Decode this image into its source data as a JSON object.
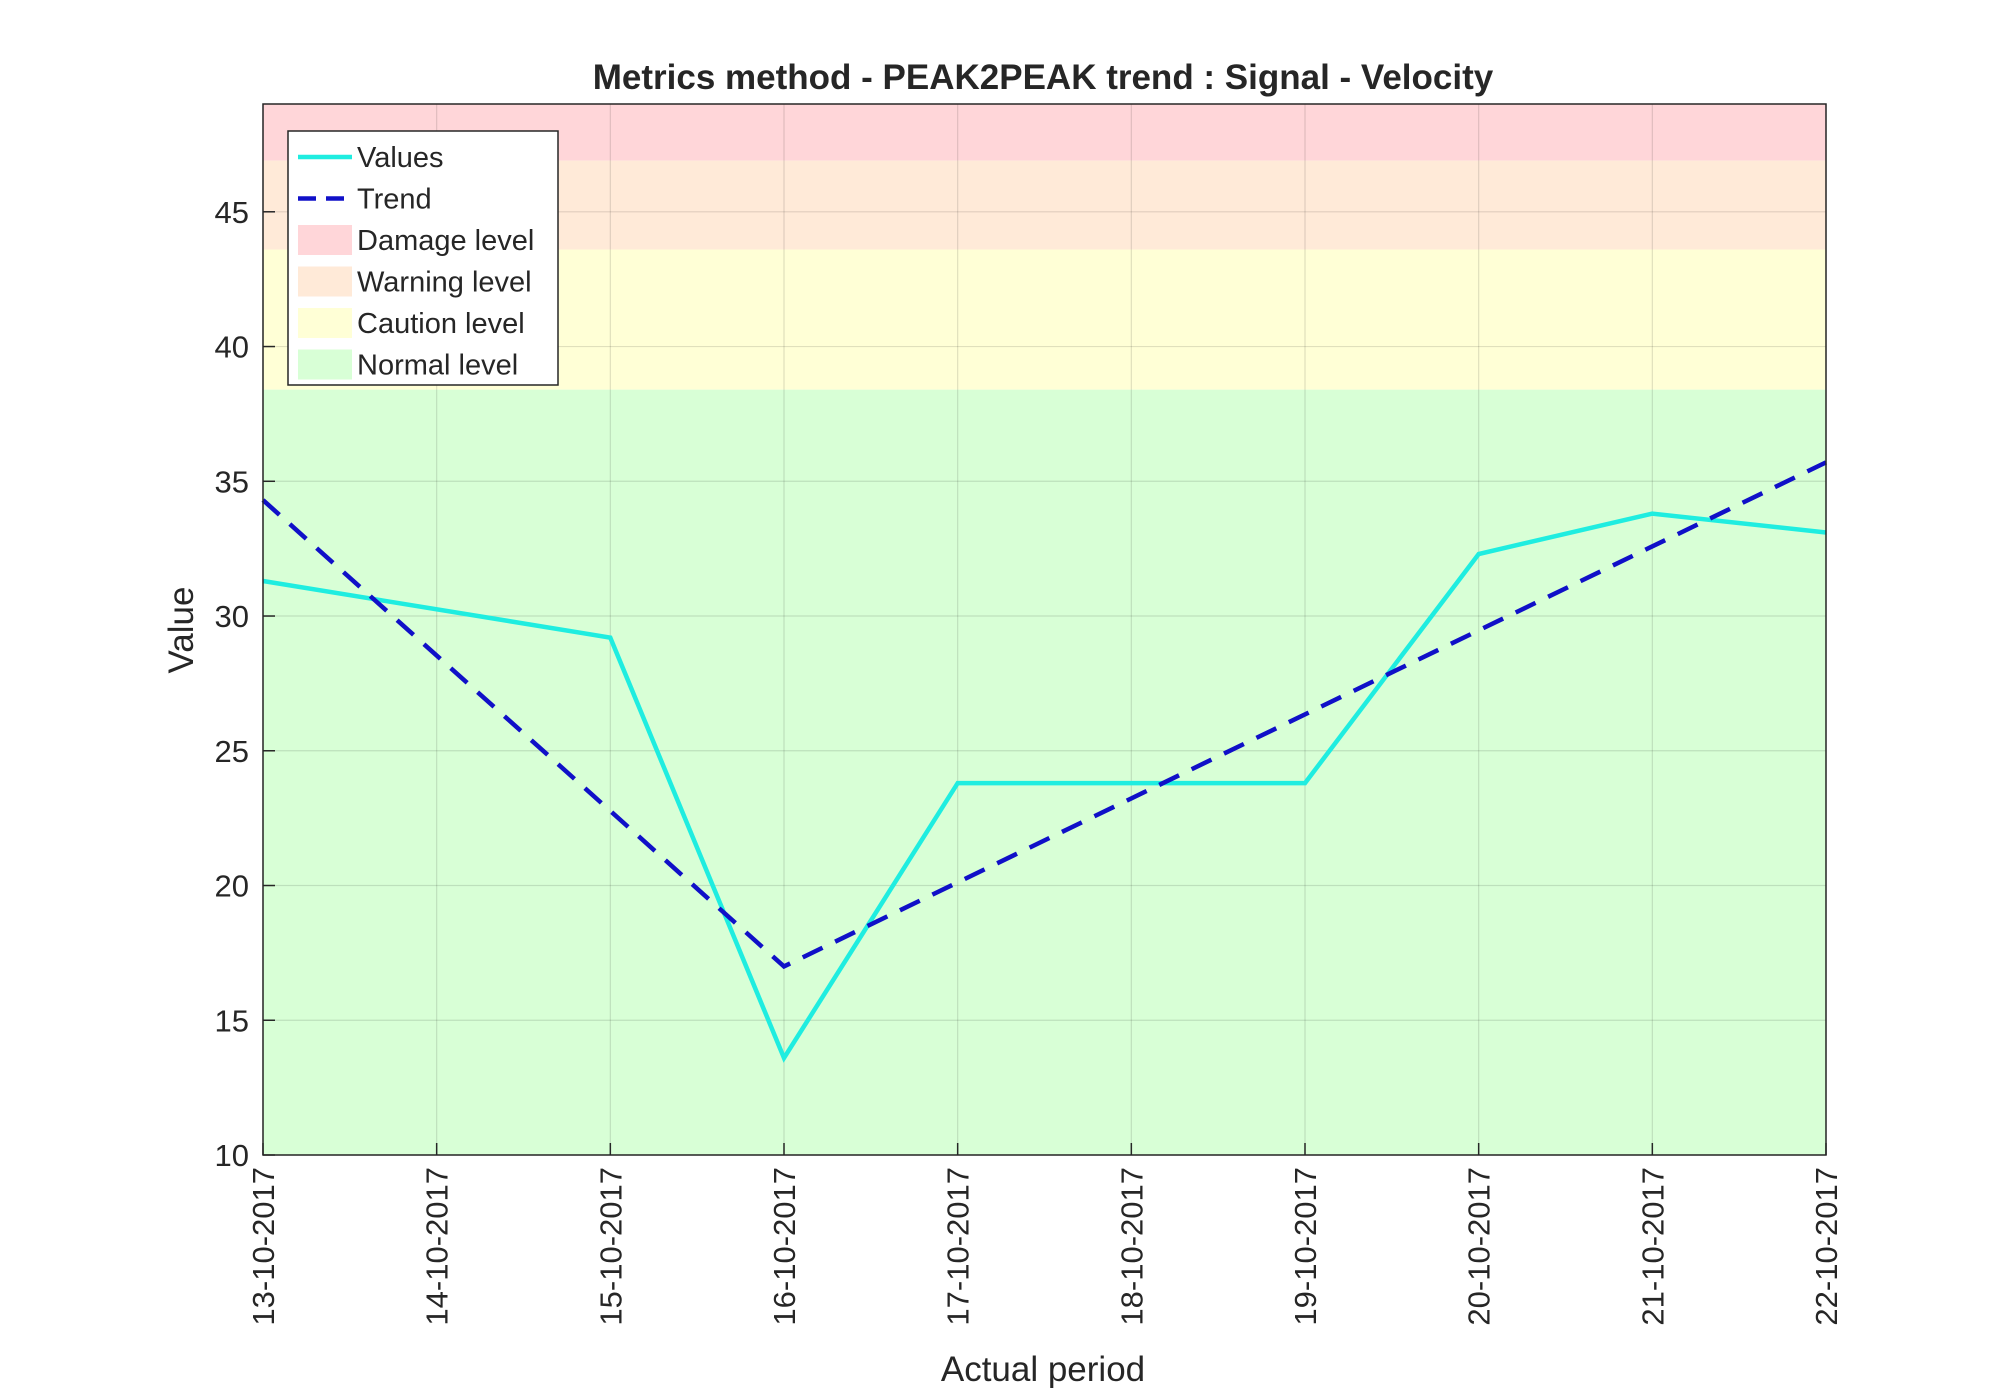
{
  "chart_data": {
    "type": "line",
    "title": "Metrics method - PEAK2PEAK trend : Signal - Velocity",
    "xlabel": "Actual period",
    "ylabel": "Value",
    "ylim": [
      10,
      49
    ],
    "yticks": [
      10,
      15,
      20,
      25,
      30,
      35,
      40,
      45
    ],
    "categories": [
      "13-10-2017",
      "14-10-2017",
      "15-10-2017",
      "16-10-2017",
      "17-10-2017",
      "18-10-2017",
      "19-10-2017",
      "20-10-2017",
      "21-10-2017",
      "22-10-2017"
    ],
    "grid": true,
    "legend_position": "top-left",
    "series": [
      {
        "name": "Values",
        "style": "solid",
        "color": "#1fede0",
        "x": [
          "13-10-2017",
          "15-10-2017",
          "16-10-2017",
          "17-10-2017",
          "19-10-2017",
          "20-10-2017",
          "21-10-2017",
          "22-10-2017"
        ],
        "values": [
          31.3,
          29.2,
          13.6,
          23.8,
          23.8,
          32.3,
          33.8,
          33.1
        ]
      },
      {
        "name": "Trend",
        "style": "dashed",
        "color": "#1010c8",
        "x": [
          "13-10-2017",
          "16-10-2017",
          "22-10-2017"
        ],
        "values": [
          34.3,
          17.0,
          35.7
        ]
      }
    ],
    "bands": [
      {
        "name": "Damage level",
        "from": 46.9,
        "to": 49,
        "color": "#ffd6d9"
      },
      {
        "name": "Warning level",
        "from": 43.6,
        "to": 46.9,
        "color": "#ffead8"
      },
      {
        "name": "Caution level",
        "from": 38.4,
        "to": 43.6,
        "color": "#ffffd6"
      },
      {
        "name": "Normal level",
        "from": 10,
        "to": 38.4,
        "color": "#d8ffd6"
      }
    ]
  }
}
